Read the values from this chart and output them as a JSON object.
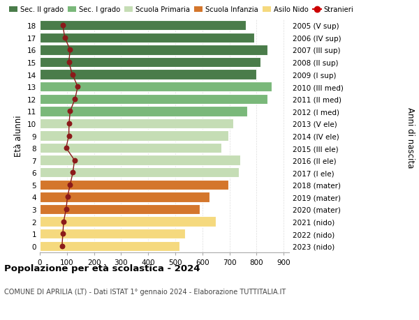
{
  "ages": [
    18,
    17,
    16,
    15,
    14,
    13,
    12,
    11,
    10,
    9,
    8,
    7,
    6,
    5,
    4,
    3,
    2,
    1,
    0
  ],
  "right_labels": [
    "2005 (V sup)",
    "2006 (IV sup)",
    "2007 (III sup)",
    "2008 (II sup)",
    "2009 (I sup)",
    "2010 (III med)",
    "2011 (II med)",
    "2012 (I med)",
    "2013 (V ele)",
    "2014 (IV ele)",
    "2015 (III ele)",
    "2016 (II ele)",
    "2017 (I ele)",
    "2018 (mater)",
    "2019 (mater)",
    "2020 (mater)",
    "2021 (nido)",
    "2022 (nido)",
    "2023 (nido)"
  ],
  "bar_values": [
    760,
    790,
    840,
    815,
    800,
    855,
    840,
    765,
    715,
    695,
    670,
    740,
    735,
    695,
    625,
    590,
    650,
    535,
    515
  ],
  "bar_colors": [
    "#4a7c4a",
    "#4a7c4a",
    "#4a7c4a",
    "#4a7c4a",
    "#4a7c4a",
    "#7ab87a",
    "#7ab87a",
    "#7ab87a",
    "#c5ddb5",
    "#c5ddb5",
    "#c5ddb5",
    "#c5ddb5",
    "#c5ddb5",
    "#d4762c",
    "#d4762c",
    "#d4762c",
    "#f5d97e",
    "#f5d97e",
    "#f5d97e"
  ],
  "stranieri_values": [
    85,
    92,
    112,
    107,
    120,
    140,
    130,
    112,
    108,
    107,
    97,
    128,
    122,
    112,
    102,
    97,
    88,
    85,
    82
  ],
  "stranieri_color": "#8b1a1a",
  "legend_labels": [
    "Sec. II grado",
    "Sec. I grado",
    "Scuola Primaria",
    "Scuola Infanzia",
    "Asilo Nido",
    "Stranieri"
  ],
  "legend_colors": [
    "#4a7c4a",
    "#7ab87a",
    "#c5ddb5",
    "#d4762c",
    "#f5d97e",
    "#cc0000"
  ],
  "ylabel_left": "Età alunni",
  "ylabel_right": "Anni di nascita",
  "title": "Popolazione per età scolastica - 2024",
  "subtitle": "COMUNE DI APRILIA (LT) - Dati ISTAT 1° gennaio 2024 - Elaborazione TUTTITALIA.IT",
  "xlim": [
    0,
    920
  ],
  "xticks": [
    0,
    100,
    200,
    300,
    400,
    500,
    600,
    700,
    800,
    900
  ],
  "ylim": [
    -0.55,
    18.55
  ],
  "bg_color": "#ffffff",
  "bar_height": 0.82,
  "grid_color": "#dddddd"
}
